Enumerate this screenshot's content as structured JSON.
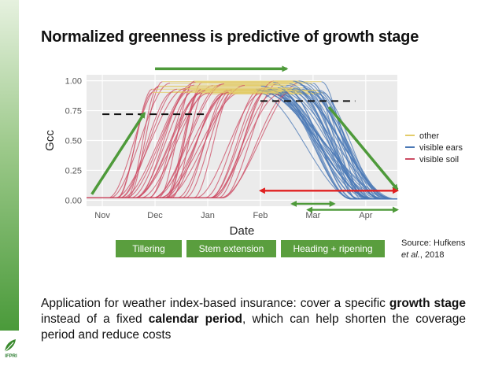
{
  "slide": {
    "title": "Normalized greenness is predictive of growth stage",
    "logo_text": "IFPRI",
    "stages": [
      "Tillering",
      "Stem extension",
      "Heading + ripening"
    ],
    "source_prefix": "Source: Hufkens",
    "source_author": "et al.",
    "source_year": ", 2018",
    "body": {
      "p1": "Application for weather index-based insurance: cover a specific ",
      "b1": "growth stage",
      "p2": " instead of a fixed ",
      "b2": "calendar period",
      "p3": ", which can help shorten the coverage period and reduce costs"
    }
  },
  "colors": {
    "other": "#e3cc6a",
    "visible_ears": "#4a78b5",
    "visible_soil": "#cc4b63",
    "arrow_green": "#4e9a3a",
    "arrow_red": "#e02020",
    "stage_bg": "#5a9e3e",
    "panel_bg": "#ebebeb"
  },
  "chart_data": {
    "type": "line",
    "xlabel": "Date",
    "ylabel": "Gcc",
    "x_ticks": [
      "Nov",
      "Dec",
      "Jan",
      "Feb",
      "Mar",
      "Apr"
    ],
    "x_domain_months": [
      -0.3,
      5.6
    ],
    "y_ticks": [
      "0.00",
      "0.25",
      "0.50",
      "0.75",
      "1.00"
    ],
    "ylim": [
      -0.05,
      1.05
    ],
    "legend": {
      "position": "right",
      "entries": [
        {
          "key": "other",
          "label": "other"
        },
        {
          "key": "visible_ears",
          "label": "visible ears"
        },
        {
          "key": "visible_soil",
          "label": "visible soil"
        }
      ]
    },
    "curve_family": {
      "n_curves": 48,
      "rise_start_month": [
        0.1,
        2.3
      ],
      "rise_duration_month": [
        0.6,
        1.6
      ],
      "plateau": [
        0.88,
        1.0
      ],
      "decline_start_month": [
        2.9,
        4.2
      ],
      "decline_end_month": [
        4.7,
        5.6
      ]
    },
    "thresholds": [
      {
        "label": "rise threshold",
        "y": 0.72,
        "x_range_months": [
          0.0,
          2.0
        ]
      },
      {
        "label": "decline threshold",
        "y": 0.83,
        "x_range_months": [
          3.0,
          4.8
        ]
      }
    ],
    "annotations": [
      {
        "type": "arrow",
        "color": "green",
        "from": [
          -0.2,
          0.05
        ],
        "to": [
          0.8,
          0.73
        ]
      },
      {
        "type": "arrow",
        "color": "green",
        "from": [
          1.0,
          1.1
        ],
        "to": [
          3.5,
          1.1
        ]
      },
      {
        "type": "arrow",
        "color": "green",
        "from": [
          4.3,
          0.78
        ],
        "to": [
          5.6,
          0.09
        ]
      },
      {
        "type": "double-arrow",
        "color": "red",
        "from": [
          3.0,
          0.08
        ],
        "to": [
          5.6,
          0.08
        ]
      },
      {
        "type": "double-arrow",
        "color": "green",
        "from": [
          3.6,
          -0.03
        ],
        "to": [
          4.4,
          -0.03
        ]
      },
      {
        "type": "double-arrow",
        "color": "green",
        "from": [
          3.9,
          -0.08
        ],
        "to": [
          5.6,
          -0.08
        ]
      }
    ]
  }
}
